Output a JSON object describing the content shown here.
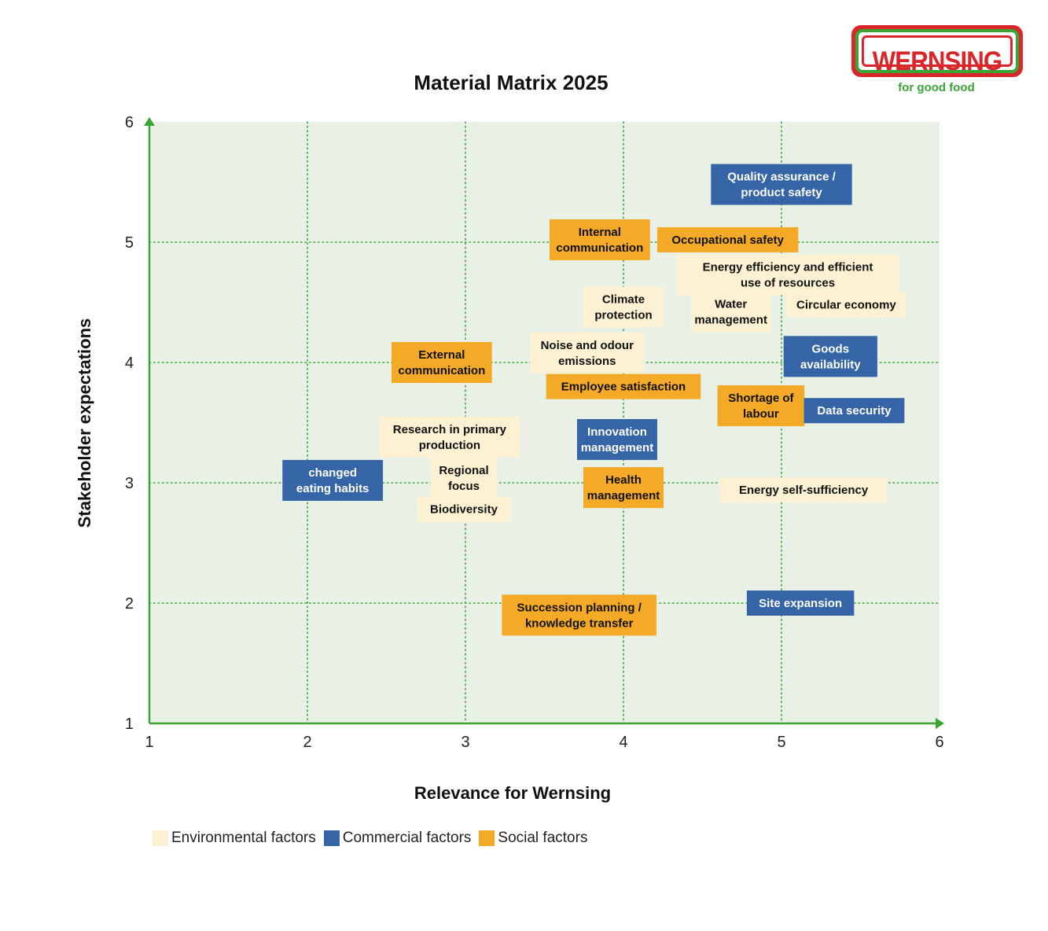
{
  "logo": {
    "brand": "WERNSING",
    "tagline": "for good food"
  },
  "colors": {
    "environmental": "#fdf1d3",
    "commercial": "#3565a6",
    "social": "#f4a927",
    "plot_bg": "#e9f1e7",
    "grid": "#3aa535",
    "axis": "#3aa535"
  },
  "legend": [
    {
      "label": "Environmental factors",
      "category": "environmental"
    },
    {
      "label": "Commercial factors",
      "category": "commercial"
    },
    {
      "label": "Social factors",
      "category": "social"
    }
  ],
  "chart_data": {
    "type": "scatter",
    "title": "Material Matrix 2025",
    "xlabel": "Relevance for Wernsing",
    "ylabel": "Stakeholder expectations",
    "xlim": [
      1,
      6
    ],
    "ylim": [
      1,
      6
    ],
    "xticks": [
      1,
      2,
      3,
      4,
      5,
      6
    ],
    "yticks": [
      1,
      2,
      3,
      4,
      5,
      6
    ],
    "grid": true,
    "legend_position": "bottom-left",
    "points": [
      {
        "label": [
          "Quality assurance /",
          "product safety"
        ],
        "x": 5.0,
        "y": 5.48,
        "category": "commercial"
      },
      {
        "label": [
          "Internal",
          "communication"
        ],
        "x": 3.85,
        "y": 5.02,
        "category": "social"
      },
      {
        "label": [
          "Occupational safety"
        ],
        "x": 4.66,
        "y": 5.02,
        "category": "social"
      },
      {
        "label": [
          "Energy efficiency and efficient",
          "use of resources"
        ],
        "x": 5.04,
        "y": 4.73,
        "category": "environmental"
      },
      {
        "label": [
          "Climate",
          "protection"
        ],
        "x": 4.0,
        "y": 4.46,
        "category": "environmental"
      },
      {
        "label": [
          "Water",
          "management"
        ],
        "x": 4.68,
        "y": 4.42,
        "category": "environmental"
      },
      {
        "label": [
          "Circular economy"
        ],
        "x": 5.41,
        "y": 4.48,
        "category": "environmental"
      },
      {
        "label": [
          "Noise and odour",
          "emissions"
        ],
        "x": 3.77,
        "y": 4.08,
        "category": "environmental"
      },
      {
        "label": [
          "External",
          "communication"
        ],
        "x": 2.85,
        "y": 4.0,
        "category": "social"
      },
      {
        "label": [
          "Goods",
          "availability"
        ],
        "x": 5.31,
        "y": 4.05,
        "category": "commercial"
      },
      {
        "label": [
          "Employee satisfaction"
        ],
        "x": 4.0,
        "y": 3.8,
        "category": "social"
      },
      {
        "label": [
          "Shortage of",
          "labour"
        ],
        "x": 4.87,
        "y": 3.64,
        "category": "social"
      },
      {
        "label": [
          "Data security"
        ],
        "x": 5.46,
        "y": 3.6,
        "category": "commercial"
      },
      {
        "label": [
          "Research in primary",
          "production"
        ],
        "x": 2.9,
        "y": 3.38,
        "category": "environmental"
      },
      {
        "label": [
          "Innovation",
          "management"
        ],
        "x": 3.96,
        "y": 3.36,
        "category": "commercial"
      },
      {
        "label": [
          "changed",
          "eating habits"
        ],
        "x": 2.16,
        "y": 3.02,
        "category": "commercial"
      },
      {
        "label": [
          "Regional",
          "focus"
        ],
        "x": 2.99,
        "y": 3.04,
        "category": "environmental"
      },
      {
        "label": [
          "Biodiversity"
        ],
        "x": 2.99,
        "y": 2.78,
        "category": "environmental"
      },
      {
        "label": [
          "Health",
          "management"
        ],
        "x": 4.0,
        "y": 2.96,
        "category": "social"
      },
      {
        "label": [
          "Energy self-sufficiency"
        ],
        "x": 5.14,
        "y": 2.94,
        "category": "environmental"
      },
      {
        "label": [
          "Succession planning /",
          "knowledge transfer"
        ],
        "x": 3.72,
        "y": 1.9,
        "category": "social"
      },
      {
        "label": [
          "Site expansion"
        ],
        "x": 5.12,
        "y": 2.0,
        "category": "commercial"
      }
    ]
  }
}
